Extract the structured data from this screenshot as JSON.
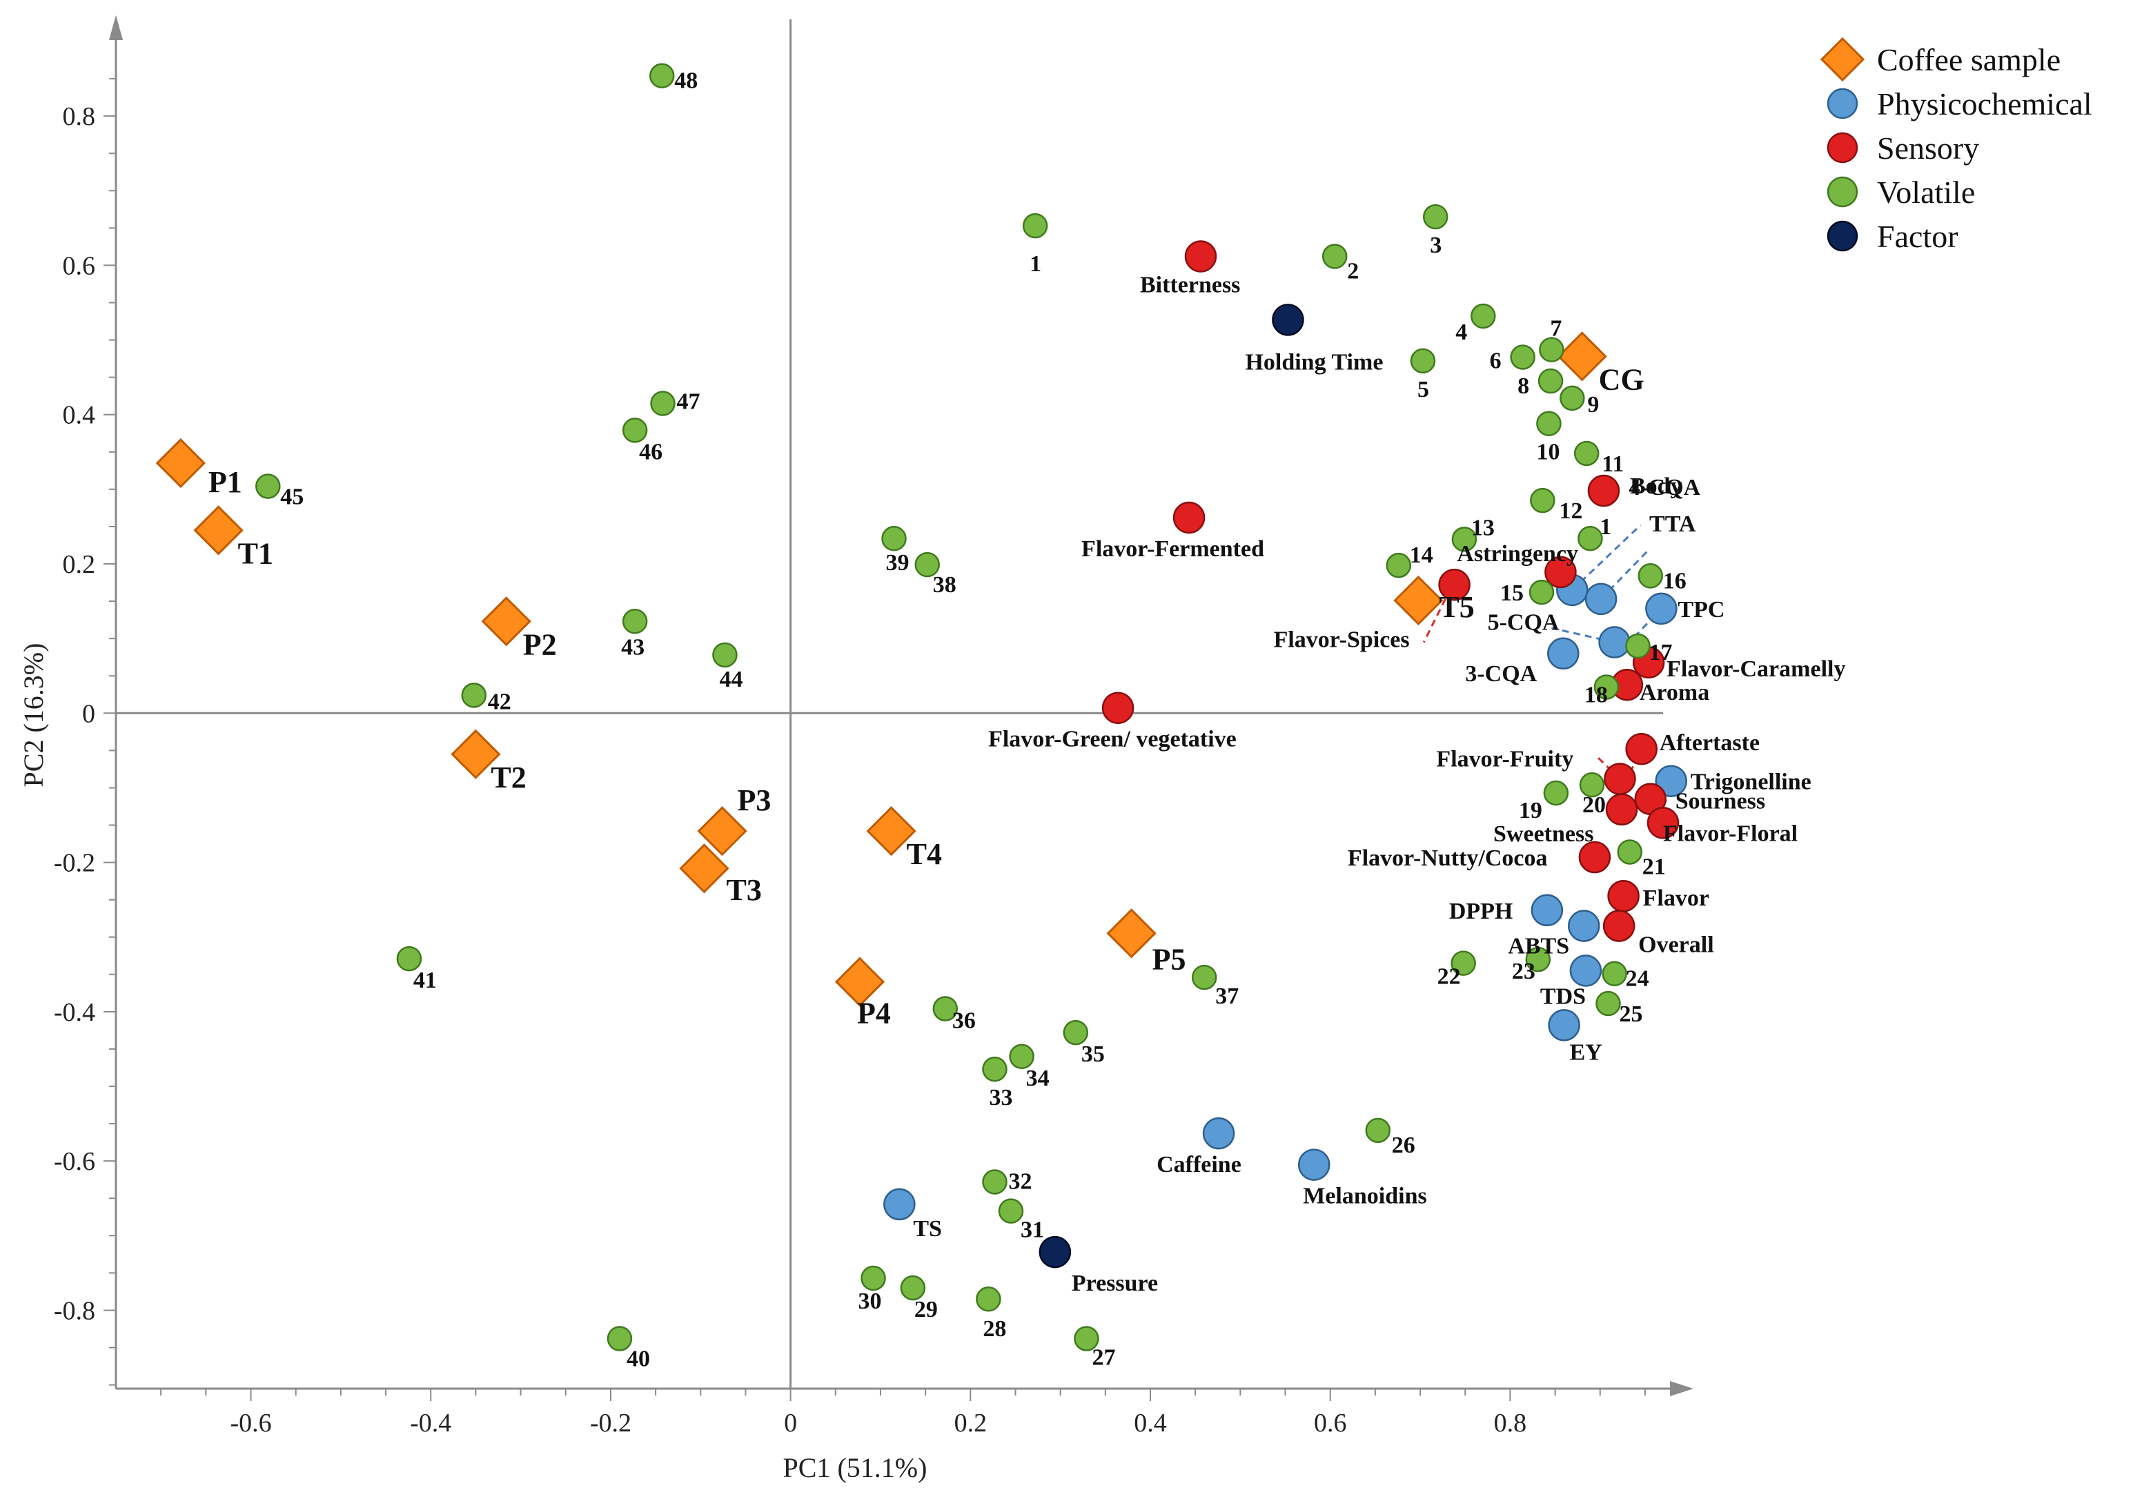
{
  "chart_data": {
    "type": "scatter",
    "title": "",
    "xlabel": "PC1 (51.1%)",
    "ylabel": "PC2 (16.3%)",
    "xlim": [
      -0.75,
      0.97
    ],
    "ylim": [
      -0.905,
      0.9
    ],
    "grid": false,
    "legend_position": "top-right",
    "x_ticks": [
      {
        "v": -0.6,
        "label": "-0.6"
      },
      {
        "v": -0.4,
        "label": "-0.4"
      },
      {
        "v": -0.2,
        "label": "-0.2"
      },
      {
        "v": 0,
        "label": "0"
      },
      {
        "v": 0.2,
        "label": "0.2"
      },
      {
        "v": 0.4,
        "label": "0.4"
      },
      {
        "v": 0.6,
        "label": "0.6"
      },
      {
        "v": 0.8,
        "label": "0.8"
      }
    ],
    "y_ticks": [
      {
        "v": 0.8,
        "label": "0.8"
      },
      {
        "v": 0.6,
        "label": "0.6"
      },
      {
        "v": 0.4,
        "label": "0.4"
      },
      {
        "v": 0.2,
        "label": "0.2"
      },
      {
        "v": 0,
        "label": "0"
      },
      {
        "v": -0.2,
        "label": "-0.2"
      },
      {
        "v": -0.4,
        "label": "-0.4"
      },
      {
        "v": -0.6,
        "label": "-0.6"
      },
      {
        "v": -0.8,
        "label": "-0.8"
      }
    ],
    "colors": {
      "coffee": "#ff8c1a",
      "coffee_stroke": "#c05a00",
      "physicochemical": "#5b9bd5",
      "physicochemical_stroke": "#2e5f8f",
      "sensory": "#e02020",
      "sensory_stroke": "#8a0f0f",
      "volatile": "#77b843",
      "volatile_stroke": "#3f7a1c",
      "factor": "#0b2455",
      "factor_stroke": "#000a22",
      "axis": "#8a8a8a"
    },
    "legend": [
      {
        "key": "coffee",
        "label": "Coffee  sample"
      },
      {
        "key": "physicochemical",
        "label": "Physicochemical"
      },
      {
        "key": "sensory",
        "label": "Sensory"
      },
      {
        "key": "volatile",
        "label": "Volatile"
      },
      {
        "key": "factor",
        "label": "Factor"
      }
    ],
    "series": [
      {
        "name": "Coffee sample",
        "key": "coffee",
        "marker": "diamond",
        "points": [
          {
            "x": -0.678,
            "y": 0.335,
            "label": "P1"
          },
          {
            "x": -0.636,
            "y": 0.245,
            "label": "T1"
          },
          {
            "x": -0.316,
            "y": 0.123,
            "label": "P2"
          },
          {
            "x": -0.35,
            "y": -0.055,
            "label": "T2"
          },
          {
            "x": -0.076,
            "y": -0.158,
            "label": "P3"
          },
          {
            "x": -0.096,
            "y": -0.208,
            "label": "T3"
          },
          {
            "x": 0.112,
            "y": -0.158,
            "label": "T4"
          },
          {
            "x": 0.077,
            "y": -0.36,
            "label": "P4"
          },
          {
            "x": 0.379,
            "y": -0.295,
            "label": "P5"
          },
          {
            "x": 0.698,
            "y": 0.151,
            "label": "T5"
          },
          {
            "x": 0.88,
            "y": 0.478,
            "label": "CG"
          }
        ]
      },
      {
        "name": "Physicochemical",
        "key": "physicochemical",
        "marker": "circle",
        "points": [
          {
            "x": 0.869,
            "y": 0.165,
            "label": "4-CQA"
          },
          {
            "x": 0.901,
            "y": 0.153,
            "label": "TTA"
          },
          {
            "x": 0.968,
            "y": 0.14,
            "label": "TPC"
          },
          {
            "x": 0.916,
            "y": 0.095,
            "label": "5-CQA"
          },
          {
            "x": 0.859,
            "y": 0.08,
            "label": "3-CQA"
          },
          {
            "x": 0.979,
            "y": -0.091,
            "label": "Trigonelline"
          },
          {
            "x": 0.841,
            "y": -0.264,
            "label": "DPPH"
          },
          {
            "x": 0.882,
            "y": -0.285,
            "label": "ABTS"
          },
          {
            "x": 0.884,
            "y": -0.345,
            "label": "TDS"
          },
          {
            "x": 0.86,
            "y": -0.418,
            "label": "EY"
          },
          {
            "x": 0.476,
            "y": -0.563,
            "label": "Caffeine"
          },
          {
            "x": 0.582,
            "y": -0.605,
            "label": "Melanoidins"
          },
          {
            "x": 0.121,
            "y": -0.658,
            "label": "TS"
          }
        ]
      },
      {
        "name": "Sensory",
        "key": "sensory",
        "marker": "circle",
        "points": [
          {
            "x": 0.456,
            "y": 0.612,
            "label": "Bitterness"
          },
          {
            "x": 0.443,
            "y": 0.262,
            "label": "Flavor-Fermented"
          },
          {
            "x": 0.904,
            "y": 0.298,
            "label": "Body"
          },
          {
            "x": 0.856,
            "y": 0.189,
            "label": "Astringency"
          },
          {
            "x": 0.738,
            "y": 0.172,
            "label": "Flavor-Spices"
          },
          {
            "x": 0.954,
            "y": 0.068,
            "label": "Flavor-Caramelly"
          },
          {
            "x": 0.93,
            "y": 0.038,
            "label": "Aroma"
          },
          {
            "x": 0.364,
            "y": 0.007,
            "label": "Flavor-Green/ vegetative"
          },
          {
            "x": 0.946,
            "y": -0.048,
            "label": "Aftertaste"
          },
          {
            "x": 0.922,
            "y": -0.088,
            "label": "Flavor-Fruity"
          },
          {
            "x": 0.956,
            "y": -0.115,
            "label": "Sourness"
          },
          {
            "x": 0.924,
            "y": -0.129,
            "label": "Sweetness"
          },
          {
            "x": 0.97,
            "y": -0.147,
            "label": "Flavor-Floral"
          },
          {
            "x": 0.894,
            "y": -0.193,
            "label": "Flavor-Nutty/Cocoa"
          },
          {
            "x": 0.926,
            "y": -0.245,
            "label": "Flavor"
          },
          {
            "x": 0.921,
            "y": -0.285,
            "label": "Overall"
          }
        ]
      },
      {
        "name": "Volatile",
        "key": "volatile",
        "marker": "circle",
        "points": [
          {
            "x": 0.272,
            "y": 0.653,
            "label": "1"
          },
          {
            "x": 0.605,
            "y": 0.612,
            "label": "2"
          },
          {
            "x": 0.717,
            "y": 0.665,
            "label": "3"
          },
          {
            "x": 0.77,
            "y": 0.532,
            "label": "4"
          },
          {
            "x": 0.703,
            "y": 0.472,
            "label": "5"
          },
          {
            "x": 0.814,
            "y": 0.477,
            "label": "6"
          },
          {
            "x": 0.846,
            "y": 0.487,
            "label": "7"
          },
          {
            "x": 0.845,
            "y": 0.445,
            "label": "8"
          },
          {
            "x": 0.869,
            "y": 0.422,
            "label": "9"
          },
          {
            "x": 0.843,
            "y": 0.388,
            "label": "10"
          },
          {
            "x": 0.885,
            "y": 0.348,
            "label": "11"
          },
          {
            "x": 0.836,
            "y": 0.285,
            "label": "12"
          },
          {
            "x": 0.749,
            "y": 0.233,
            "label": "13"
          },
          {
            "x": 0.676,
            "y": 0.198,
            "label": "14"
          },
          {
            "x": 0.835,
            "y": 0.162,
            "label": "15"
          },
          {
            "x": 0.956,
            "y": 0.184,
            "label": "16"
          },
          {
            "x": 0.942,
            "y": 0.09,
            "label": "17"
          },
          {
            "x": 0.907,
            "y": 0.035,
            "label": "18"
          },
          {
            "x": 0.851,
            "y": -0.107,
            "label": "19"
          },
          {
            "x": 0.891,
            "y": -0.096,
            "label": "20"
          },
          {
            "x": 0.933,
            "y": -0.186,
            "label": "21"
          },
          {
            "x": 0.748,
            "y": -0.335,
            "label": "22"
          },
          {
            "x": 0.831,
            "y": -0.33,
            "label": "23"
          },
          {
            "x": 0.916,
            "y": -0.349,
            "label": "24"
          },
          {
            "x": 0.909,
            "y": -0.389,
            "label": "25"
          },
          {
            "x": 0.653,
            "y": -0.559,
            "label": "26"
          },
          {
            "x": 0.329,
            "y": -0.838,
            "label": "27"
          },
          {
            "x": 0.22,
            "y": -0.785,
            "label": "28"
          },
          {
            "x": 0.136,
            "y": -0.77,
            "label": "29"
          },
          {
            "x": 0.092,
            "y": -0.757,
            "label": "30"
          },
          {
            "x": 0.245,
            "y": -0.667,
            "label": "31"
          },
          {
            "x": 0.227,
            "y": -0.628,
            "label": "32"
          },
          {
            "x": 0.227,
            "y": -0.477,
            "label": "33"
          },
          {
            "x": 0.257,
            "y": -0.46,
            "label": "34"
          },
          {
            "x": 0.317,
            "y": -0.428,
            "label": "35"
          },
          {
            "x": 0.172,
            "y": -0.396,
            "label": "36"
          },
          {
            "x": 0.46,
            "y": -0.354,
            "label": "37"
          },
          {
            "x": 0.152,
            "y": 0.199,
            "label": "38"
          },
          {
            "x": 0.115,
            "y": 0.234,
            "label": "39"
          },
          {
            "x": -0.19,
            "y": -0.838,
            "label": "40"
          },
          {
            "x": -0.424,
            "y": -0.329,
            "label": "41"
          },
          {
            "x": -0.352,
            "y": 0.024,
            "label": "42"
          },
          {
            "x": -0.173,
            "y": 0.123,
            "label": "43"
          },
          {
            "x": -0.073,
            "y": 0.078,
            "label": "44"
          },
          {
            "x": -0.581,
            "y": 0.304,
            "label": "45"
          },
          {
            "x": -0.173,
            "y": 0.379,
            "label": "46"
          },
          {
            "x": -0.142,
            "y": 0.415,
            "label": "47"
          },
          {
            "x": -0.143,
            "y": 0.854,
            "label": "48"
          },
          {
            "x": 0.889,
            "y": 0.234,
            "label": "1"
          }
        ]
      },
      {
        "name": "Factor",
        "key": "factor",
        "marker": "circle",
        "points": [
          {
            "x": 0.553,
            "y": 0.527,
            "label": "Holding Time"
          },
          {
            "x": 0.294,
            "y": -0.722,
            "label": "Pressure"
          }
        ]
      }
    ],
    "connectors": [
      {
        "from": [
          0.869,
          0.165
        ],
        "to": [
          0.945,
          0.252
        ],
        "color": "#4a7cc4"
      },
      {
        "from": [
          0.901,
          0.153
        ],
        "to": [
          0.955,
          0.22
        ],
        "color": "#4a7cc4"
      },
      {
        "from": [
          0.916,
          0.095
        ],
        "to": [
          0.846,
          0.114
        ],
        "color": "#4a7cc4"
      },
      {
        "from": [
          0.938,
          0.102
        ],
        "to": [
          0.968,
          0.14
        ],
        "color": "#4a7cc4"
      },
      {
        "from": [
          0.728,
          0.153
        ],
        "to": [
          0.704,
          0.095
        ],
        "color": "#d23030"
      },
      {
        "from": [
          0.898,
          -0.06
        ],
        "to": [
          0.922,
          -0.088
        ],
        "color": "#d23030"
      },
      {
        "from": [
          0.944,
          -0.105
        ],
        "to": [
          0.974,
          -0.118
        ],
        "color": "#d23030"
      },
      {
        "from": [
          0.922,
          -0.108
        ],
        "to": [
          0.946,
          -0.048
        ],
        "color": "#d23030"
      }
    ]
  }
}
